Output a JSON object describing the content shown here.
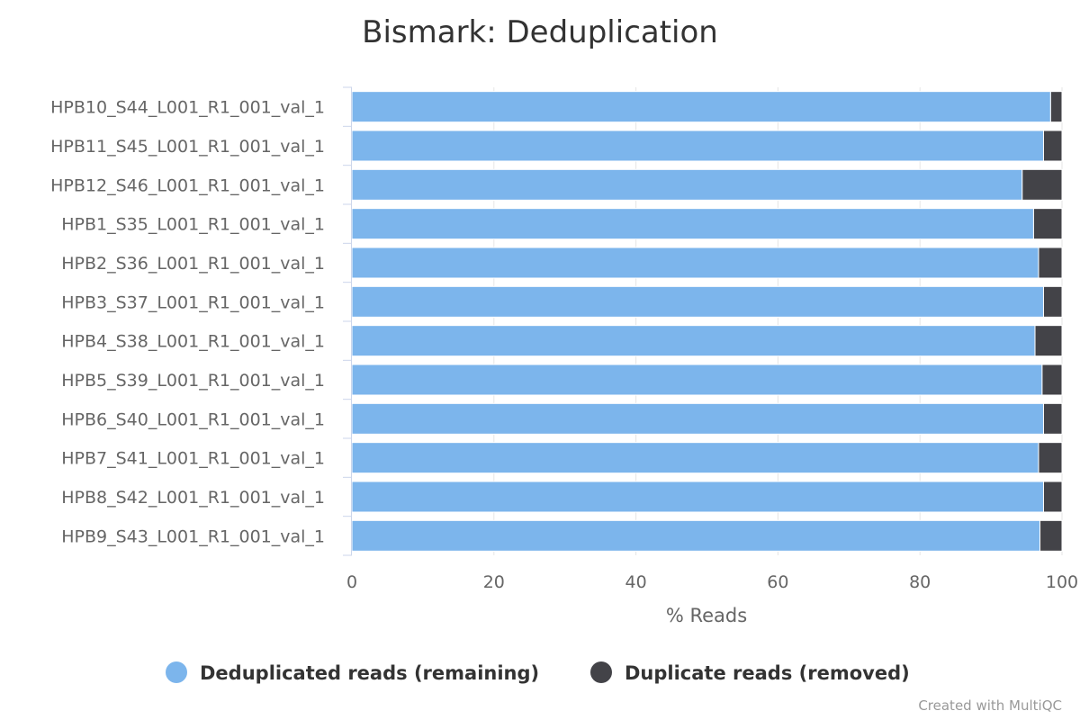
{
  "chart_data": {
    "type": "bar",
    "orientation": "horizontal",
    "stacked": true,
    "title": "Bismark: Deduplication",
    "xlabel": "% Reads",
    "ylabel": "",
    "xlim": [
      0,
      100
    ],
    "xticks": [
      "0",
      "20",
      "40",
      "60",
      "80",
      "100"
    ],
    "grid": true,
    "legend_position": "bottom",
    "categories": [
      "HPB10_S44_L001_R1_001_val_1",
      "HPB11_S45_L001_R1_001_val_1",
      "HPB12_S46_L001_R1_001_val_1",
      "HPB1_S35_L001_R1_001_val_1",
      "HPB2_S36_L001_R1_001_val_1",
      "HPB3_S37_L001_R1_001_val_1",
      "HPB4_S38_L001_R1_001_val_1",
      "HPB5_S39_L001_R1_001_val_1",
      "HPB6_S40_L001_R1_001_val_1",
      "HPB7_S41_L001_R1_001_val_1",
      "HPB8_S42_L001_R1_001_val_1",
      "HPB9_S43_L001_R1_001_val_1"
    ],
    "series": [
      {
        "name": "Deduplicated reads (remaining)",
        "color": "#7cb5ec",
        "values": [
          98.4,
          97.4,
          94.4,
          96.0,
          96.7,
          97.4,
          96.2,
          97.2,
          97.4,
          96.7,
          97.4,
          96.9
        ]
      },
      {
        "name": "Duplicate reads (removed)",
        "color": "#434348",
        "values": [
          1.6,
          2.6,
          5.6,
          4.0,
          3.3,
          2.6,
          3.8,
          2.8,
          2.6,
          3.3,
          2.6,
          3.1
        ]
      }
    ]
  },
  "credit": "Created with MultiQC"
}
